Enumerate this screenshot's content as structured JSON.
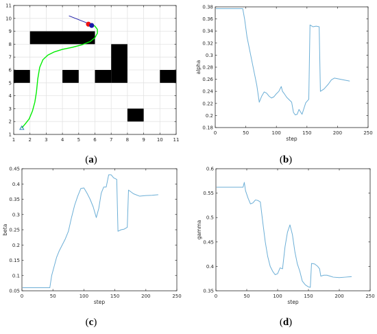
{
  "colors": {
    "series": "#6baed6",
    "grid": "#e3e3e3",
    "axis": "#262626",
    "obstacle": "#000000",
    "path": "#00ee00",
    "start": "#1f77b4",
    "robot_red": "#ee1111",
    "robot_blue": "#1a1aa8",
    "heading": "#1a1aa8"
  },
  "chart_data": [
    {
      "panel_label": "(a)",
      "type": "scatter",
      "grid": true,
      "xlim": [
        1,
        11
      ],
      "ylim": [
        1,
        11
      ],
      "xticks": [
        1,
        2,
        3,
        4,
        5,
        6,
        7,
        8,
        9,
        10,
        11
      ],
      "yticks": [
        1,
        2,
        3,
        4,
        5,
        6,
        7,
        8,
        9,
        10,
        11
      ],
      "obstacles": [
        {
          "x": [
            2,
            6
          ],
          "y": [
            8,
            9
          ]
        },
        {
          "x": [
            1,
            2
          ],
          "y": [
            5,
            6
          ]
        },
        {
          "x": [
            4,
            5
          ],
          "y": [
            5,
            6
          ]
        },
        {
          "x": [
            6,
            7
          ],
          "y": [
            5,
            6
          ]
        },
        {
          "x": [
            7,
            8
          ],
          "y": [
            5,
            8
          ]
        },
        {
          "x": [
            10,
            11
          ],
          "y": [
            5,
            6
          ]
        },
        {
          "x": [
            8,
            9
          ],
          "y": [
            2,
            3
          ]
        }
      ],
      "path": {
        "x": [
          1.5,
          1.7,
          1.95,
          2.15,
          2.3,
          2.4,
          2.48,
          2.6,
          2.8,
          3.1,
          3.5,
          4.0,
          4.6,
          5.2,
          5.7,
          6.0,
          6.15,
          6.15,
          6.0,
          5.75
        ],
        "y": [
          1.5,
          1.8,
          2.2,
          2.8,
          3.5,
          4.3,
          5.3,
          6.2,
          6.8,
          7.15,
          7.4,
          7.6,
          7.75,
          7.95,
          8.2,
          8.5,
          8.85,
          9.15,
          9.4,
          9.5
        ]
      },
      "start": {
        "x": 1.5,
        "y": 1.5
      },
      "robot": {
        "red": {
          "x": 5.6,
          "y": 9.55
        },
        "blue": {
          "x": 5.8,
          "y": 9.45
        }
      },
      "heading": {
        "x": [
          5.7,
          4.4
        ],
        "y": [
          9.55,
          10.2
        ]
      }
    },
    {
      "panel_label": "(b)",
      "type": "line",
      "ylabel": "alpha",
      "xlabel": "step",
      "xlim": [
        0,
        250
      ],
      "ylim": [
        0.18,
        0.38
      ],
      "xticks": [
        0,
        50,
        100,
        150,
        200,
        250
      ],
      "yticks": [
        0.18,
        0.2,
        0.22,
        0.24,
        0.26,
        0.28,
        0.3,
        0.32,
        0.34,
        0.36,
        0.38
      ],
      "grid": false,
      "series": [
        {
          "x": [
            1,
            40,
            45,
            48,
            52,
            56,
            60,
            64,
            68,
            72,
            76,
            80,
            84,
            88,
            92,
            96,
            100,
            104,
            108,
            110,
            113,
            117,
            121,
            125,
            128,
            131,
            134,
            137,
            142,
            148,
            153,
            155,
            160,
            165,
            170,
            172,
            178,
            185,
            190,
            195,
            200,
            210,
            220
          ],
          "y": [
            0.377,
            0.377,
            0.377,
            0.36,
            0.33,
            0.31,
            0.29,
            0.27,
            0.25,
            0.222,
            0.232,
            0.239,
            0.237,
            0.232,
            0.229,
            0.231,
            0.236,
            0.24,
            0.248,
            0.24,
            0.236,
            0.23,
            0.226,
            0.222,
            0.205,
            0.201,
            0.202,
            0.21,
            0.202,
            0.221,
            0.227,
            0.35,
            0.347,
            0.348,
            0.347,
            0.24,
            0.244,
            0.252,
            0.259,
            0.262,
            0.261,
            0.259,
            0.257
          ]
        }
      ]
    },
    {
      "panel_label": "(c)",
      "type": "line",
      "ylabel": "beta",
      "xlabel": "step",
      "xlim": [
        0,
        250
      ],
      "ylim": [
        0.05,
        0.45
      ],
      "xticks": [
        0,
        50,
        100,
        150,
        200,
        250
      ],
      "yticks": [
        0.05,
        0.1,
        0.15,
        0.2,
        0.25,
        0.3,
        0.35,
        0.4,
        0.45
      ],
      "grid": false,
      "series": [
        {
          "x": [
            1,
            40,
            45,
            48,
            52,
            56,
            60,
            65,
            70,
            75,
            80,
            85,
            90,
            95,
            100,
            105,
            110,
            115,
            120,
            124,
            128,
            132,
            136,
            140,
            144,
            148,
            153,
            155,
            160,
            165,
            170,
            172,
            180,
            190,
            200,
            210,
            220
          ],
          "y": [
            0.06,
            0.06,
            0.06,
            0.1,
            0.13,
            0.16,
            0.18,
            0.2,
            0.22,
            0.245,
            0.29,
            0.33,
            0.36,
            0.385,
            0.387,
            0.37,
            0.35,
            0.325,
            0.29,
            0.32,
            0.37,
            0.39,
            0.39,
            0.43,
            0.43,
            0.42,
            0.415,
            0.245,
            0.25,
            0.252,
            0.258,
            0.38,
            0.368,
            0.36,
            0.362,
            0.363,
            0.365
          ]
        }
      ]
    },
    {
      "panel_label": "(d)",
      "type": "line",
      "ylabel": "gamma",
      "xlabel": "step",
      "xlim": [
        0,
        250
      ],
      "ylim": [
        0.35,
        0.6
      ],
      "xticks": [
        0,
        50,
        100,
        150,
        200,
        250
      ],
      "yticks": [
        0.35,
        0.4,
        0.45,
        0.5,
        0.55,
        0.6
      ],
      "grid": false,
      "series": [
        {
          "x": [
            1,
            40,
            44,
            46,
            48,
            52,
            56,
            60,
            64,
            68,
            72,
            76,
            80,
            84,
            88,
            92,
            96,
            100,
            104,
            108,
            112,
            116,
            120,
            124,
            128,
            132,
            136,
            140,
            145,
            150,
            153,
            155,
            160,
            165,
            168,
            170,
            175,
            180,
            185,
            190,
            200,
            210,
            220
          ],
          "y": [
            0.562,
            0.562,
            0.562,
            0.572,
            0.555,
            0.54,
            0.528,
            0.53,
            0.536,
            0.535,
            0.532,
            0.49,
            0.45,
            0.42,
            0.4,
            0.39,
            0.383,
            0.385,
            0.397,
            0.395,
            0.44,
            0.47,
            0.485,
            0.465,
            0.43,
            0.405,
            0.39,
            0.37,
            0.362,
            0.358,
            0.357,
            0.406,
            0.405,
            0.4,
            0.395,
            0.38,
            0.382,
            0.382,
            0.38,
            0.378,
            0.377,
            0.378,
            0.379
          ]
        }
      ]
    }
  ]
}
